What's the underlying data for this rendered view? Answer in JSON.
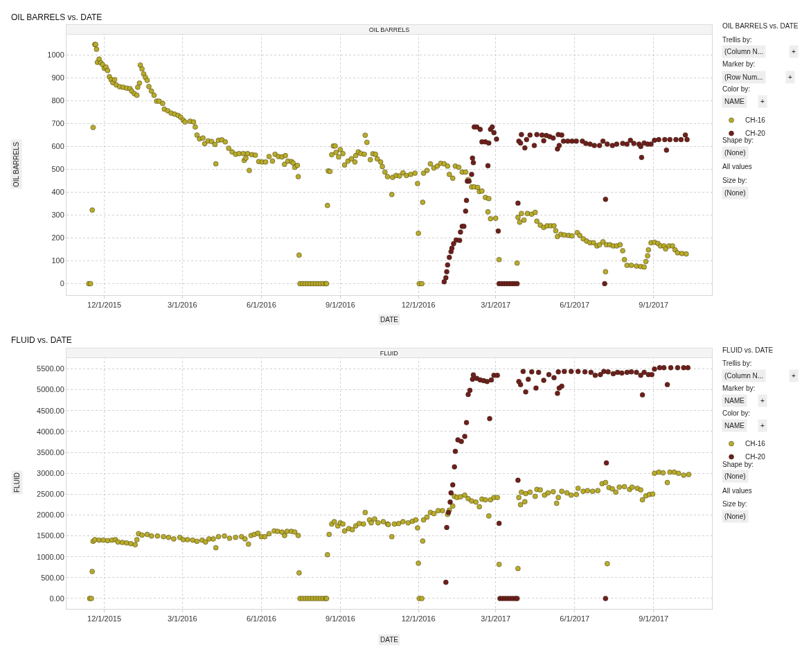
{
  "chart_data": [
    {
      "type": "scatter",
      "title": "OIL BARRELS vs. DATE",
      "subtitle": "OIL BARRELS",
      "xlabel": "DATE",
      "ylabel": "OIL BARRELS",
      "xlim": [
        "2015-10-18",
        "2017-11-08"
      ],
      "ylim": [
        -50,
        1095
      ],
      "xticks": [
        {
          "value": "2015-12-01",
          "label": "12/1/2015"
        },
        {
          "value": "2016-03-01",
          "label": "3/1/2016"
        },
        {
          "value": "2016-06-01",
          "label": "6/1/2016"
        },
        {
          "value": "2016-09-01",
          "label": "9/1/2016"
        },
        {
          "value": "2016-12-01",
          "label": "12/1/2016"
        },
        {
          "value": "2017-03-01",
          "label": "3/1/2017"
        },
        {
          "value": "2017-06-01",
          "label": "6/1/2017"
        },
        {
          "value": "2017-09-01",
          "label": "9/1/2017"
        }
      ],
      "yticks": [
        0,
        100,
        200,
        300,
        400,
        500,
        600,
        700,
        800,
        900,
        1000
      ],
      "grid": true,
      "legend": "right",
      "marker": "circle",
      "annotations": [
        "OIL BARRELS vs. DATE",
        "Trellis by:",
        "(Column N...",
        "+",
        "Marker by:",
        "(Row Num...",
        "+",
        "Color by:",
        "NAME",
        "+",
        "Shape by:",
        "(None)",
        "All values",
        "Size by:",
        "(None)"
      ],
      "series": [
        {
          "name": "CH-16",
          "color": "#b8ac2c",
          "x": [
            "2015-11-13",
            "2015-11-15",
            "2015-11-17",
            "2015-11-18",
            "2015-11-20",
            "2015-11-21",
            "2015-11-22",
            "2015-11-23",
            "2015-11-25",
            "2015-11-27",
            "2015-11-29",
            "2015-12-01",
            "2015-12-03",
            "2015-12-05",
            "2015-12-07",
            "2015-12-09",
            "2015-12-11",
            "2015-12-13",
            "2015-12-15",
            "2015-12-19",
            "2015-12-23",
            "2015-12-27",
            "2015-12-31",
            "2016-01-02",
            "2016-01-05",
            "2016-01-08",
            "2016-01-09",
            "2016-01-11",
            "2016-01-12",
            "2016-01-14",
            "2016-01-16",
            "2016-01-18",
            "2016-01-20",
            "2016-01-22",
            "2016-01-25",
            "2016-01-28",
            "2016-01-31",
            "2016-02-03",
            "2016-02-07",
            "2016-02-09",
            "2016-02-13",
            "2016-02-17",
            "2016-02-21",
            "2016-02-25",
            "2016-02-28",
            "2016-03-02",
            "2016-03-04",
            "2016-03-10",
            "2016-03-14",
            "2016-03-16",
            "2016-03-18",
            "2016-03-21",
            "2016-03-25",
            "2016-03-27",
            "2016-03-31",
            "2016-04-04",
            "2016-04-08",
            "2016-04-09",
            "2016-04-12",
            "2016-04-16",
            "2016-04-20",
            "2016-04-24",
            "2016-04-28",
            "2016-05-02",
            "2016-05-06",
            "2016-05-11",
            "2016-05-12",
            "2016-05-14",
            "2016-05-16",
            "2016-05-18",
            "2016-05-21",
            "2016-05-25",
            "2016-05-29",
            "2016-06-02",
            "2016-06-06",
            "2016-06-10",
            "2016-06-14",
            "2016-06-17",
            "2016-06-21",
            "2016-06-25",
            "2016-06-28",
            "2016-06-29",
            "2016-07-02",
            "2016-07-06",
            "2016-07-08",
            "2016-07-10",
            "2016-07-13",
            "2016-07-14",
            "2016-07-15",
            "2016-07-16",
            "2016-07-19",
            "2016-07-22",
            "2016-07-25",
            "2016-07-28",
            "2016-07-31",
            "2016-08-03",
            "2016-08-06",
            "2016-08-09",
            "2016-08-12",
            "2016-08-15",
            "2016-08-16",
            "2016-08-17",
            "2016-08-18",
            "2016-08-20",
            "2016-08-22",
            "2016-08-24",
            "2016-08-26",
            "2016-08-27",
            "2016-08-30",
            "2016-09-01",
            "2016-09-04",
            "2016-09-06",
            "2016-09-10",
            "2016-09-14",
            "2016-09-18",
            "2016-09-19",
            "2016-09-22",
            "2016-09-25",
            "2016-09-29",
            "2016-09-30",
            "2016-10-02",
            "2016-10-06",
            "2016-10-09",
            "2016-10-12",
            "2016-10-14",
            "2016-10-18",
            "2016-10-20",
            "2016-10-23",
            "2016-10-26",
            "2016-10-31",
            "2016-11-01",
            "2016-11-05",
            "2016-11-09",
            "2016-11-13",
            "2016-11-17",
            "2016-11-22",
            "2016-11-27",
            "2016-11-30",
            "2016-12-01",
            "2016-12-02",
            "2016-12-05",
            "2016-12-06",
            "2016-12-07",
            "2016-12-11",
            "2016-12-15",
            "2016-12-19",
            "2016-12-23",
            "2016-12-27",
            "2016-12-31",
            "2017-01-04",
            "2017-01-06",
            "2017-01-10",
            "2017-01-13",
            "2017-01-17",
            "2017-01-21",
            "2017-01-25",
            "2017-01-28",
            "2017-02-01",
            "2017-02-04",
            "2017-02-08",
            "2017-02-10",
            "2017-02-13",
            "2017-02-17",
            "2017-02-20",
            "2017-02-21",
            "2017-02-23",
            "2017-03-01",
            "2017-03-05",
            "2017-03-26",
            "2017-03-27",
            "2017-03-29",
            "2017-03-31",
            "2017-04-03",
            "2017-04-07",
            "2017-04-12",
            "2017-04-16",
            "2017-04-18",
            "2017-04-22",
            "2017-04-26",
            "2017-04-30",
            "2017-05-04",
            "2017-05-08",
            "2017-05-10",
            "2017-05-12",
            "2017-05-16",
            "2017-05-20",
            "2017-05-25",
            "2017-05-29",
            "2017-06-04",
            "2017-06-07",
            "2017-06-11",
            "2017-06-15",
            "2017-06-19",
            "2017-06-23",
            "2017-06-27",
            "2017-06-30",
            "2017-07-04",
            "2017-07-07",
            "2017-07-08",
            "2017-07-12",
            "2017-07-16",
            "2017-07-20",
            "2017-07-24",
            "2017-07-27",
            "2017-07-29",
            "2017-08-01",
            "2017-08-06",
            "2017-08-12",
            "2017-08-17",
            "2017-08-21",
            "2017-08-23",
            "2017-08-25",
            "2017-08-26",
            "2017-08-29",
            "2017-09-02",
            "2017-09-06",
            "2017-09-09",
            "2017-09-13",
            "2017-09-15",
            "2017-09-19",
            "2017-09-23",
            "2017-09-26",
            "2017-09-29",
            "2017-10-04",
            "2017-10-09"
          ],
          "values": [
            0,
            0,
            322,
            683,
            1046,
            1046,
            1025,
            968,
            982,
            966,
            958,
            942,
            947,
            932,
            905,
            892,
            879,
            892,
            869,
            861,
            859,
            855,
            853,
            842,
            831,
            824,
            859,
            877,
            956,
            939,
            917,
            902,
            889,
            862,
            842,
            824,
            798,
            798,
            788,
            763,
            756,
            746,
            741,
            736,
            728,
            715,
            707,
            710,
            707,
            685,
            650,
            633,
            637,
            612,
            624,
            622,
            609,
            524,
            627,
            629,
            620,
            592,
            576,
            566,
            569,
            569,
            539,
            549,
            569,
            495,
            564,
            562,
            534,
            532,
            532,
            556,
            536,
            566,
            556,
            554,
            522,
            560,
            536,
            534,
            528,
            509,
            517,
            468,
            125,
            0,
            0,
            0,
            0,
            0,
            0,
            0,
            0,
            0,
            0,
            0,
            0,
            342,
            493,
            491,
            564,
            602,
            602,
            574,
            554,
            586,
            569,
            519,
            536,
            546,
            532,
            560,
            576,
            569,
            566,
            649,
            618,
            542,
            568,
            566,
            546,
            532,
            512,
            488,
            468,
            390,
            465,
            473,
            471,
            485,
            473,
            478,
            483,
            438,
            220,
            0,
            0,
            356,
            483,
            495,
            524,
            506,
            514,
            526,
            524,
            514,
            478,
            461,
            514,
            509,
            488,
            488,
            455,
            423,
            423,
            421,
            403,
            405,
            377,
            314,
            372,
            284,
            286,
            105,
            90,
            290,
            269,
            307,
            278,
            307,
            304,
            312,
            273,
            256,
            246,
            253,
            253,
            253,
            231,
            206,
            216,
            213,
            211,
            209,
            223,
            211,
            196,
            186,
            179,
            179,
            165,
            170,
            183,
            52,
            170,
            170,
            165,
            165,
            170,
            144,
            105,
            80,
            80,
            77,
            75,
            73,
            97,
            122,
            148,
            179,
            181,
            176,
            165,
            165,
            152,
            165,
            165,
            148,
            135,
            132,
            130
          ]
        },
        {
          "name": "CH-20",
          "color": "#6e1f1f",
          "x": [
            "2016-12-31",
            "2017-01-02",
            "2017-01-03",
            "2017-01-04",
            "2017-01-06",
            "2017-01-08",
            "2017-01-09",
            "2017-01-11",
            "2017-01-14",
            "2017-01-18",
            "2017-01-19",
            "2017-01-21",
            "2017-01-23",
            "2017-01-25",
            "2017-01-26",
            "2017-01-27",
            "2017-01-29",
            "2017-02-01",
            "2017-02-02",
            "2017-02-03",
            "2017-02-04",
            "2017-02-07",
            "2017-02-11",
            "2017-02-13",
            "2017-02-17",
            "2017-02-20",
            "2017-02-21",
            "2017-02-23",
            "2017-02-25",
            "2017-02-27",
            "2017-03-02",
            "2017-03-04",
            "2017-03-05",
            "2017-03-08",
            "2017-03-11",
            "2017-03-14",
            "2017-03-17",
            "2017-03-20",
            "2017-03-23",
            "2017-03-26",
            "2017-03-27",
            "2017-03-28",
            "2017-03-30",
            "2017-03-31",
            "2017-04-04",
            "2017-04-06",
            "2017-04-10",
            "2017-04-15",
            "2017-04-18",
            "2017-04-24",
            "2017-04-26",
            "2017-04-29",
            "2017-05-03",
            "2017-05-07",
            "2017-05-12",
            "2017-05-13",
            "2017-05-14",
            "2017-05-17",
            "2017-05-19",
            "2017-05-24",
            "2017-05-29",
            "2017-06-03",
            "2017-06-10",
            "2017-06-14",
            "2017-06-19",
            "2017-06-24",
            "2017-06-30",
            "2017-07-04",
            "2017-07-06",
            "2017-07-07",
            "2017-07-09",
            "2017-07-15",
            "2017-07-20",
            "2017-07-27",
            "2017-08-01",
            "2017-08-05",
            "2017-08-09",
            "2017-08-15",
            "2017-08-17",
            "2017-08-18",
            "2017-08-21",
            "2017-08-25",
            "2017-08-29",
            "2017-09-02",
            "2017-09-07",
            "2017-09-14",
            "2017-09-16",
            "2017-09-20",
            "2017-09-27",
            "2017-10-03",
            "2017-10-08",
            "2017-10-10"
          ],
          "values": [
            8,
            26,
            52,
            82,
            115,
            140,
            155,
            175,
            191,
            189,
            226,
            251,
            251,
            317,
            364,
            448,
            448,
            478,
            549,
            529,
            685,
            685,
            675,
            620,
            620,
            516,
            615,
            675,
            685,
            660,
            632,
            230,
            0,
            0,
            0,
            0,
            0,
            0,
            0,
            0,
            352,
            623,
            615,
            652,
            594,
            630,
            650,
            604,
            652,
            650,
            625,
            648,
            643,
            637,
            589,
            652,
            604,
            650,
            623,
            623,
            623,
            623,
            623,
            613,
            610,
            604,
            604,
            623,
            0,
            369,
            610,
            604,
            610,
            613,
            610,
            627,
            613,
            610,
            600,
            552,
            615,
            610,
            610,
            627,
            630,
            630,
            584,
            630,
            630,
            630,
            650,
            630
          ]
        }
      ]
    },
    {
      "type": "scatter",
      "title": "FLUID vs. DATE",
      "subtitle": "FLUID",
      "xlabel": "DATE",
      "ylabel": "FLUID",
      "xlim": [
        "2015-10-18",
        "2017-11-08"
      ],
      "ylim": [
        -250,
        5790
      ],
      "xticks": [
        {
          "value": "2015-12-01",
          "label": "12/1/2015"
        },
        {
          "value": "2016-03-01",
          "label": "3/1/2016"
        },
        {
          "value": "2016-06-01",
          "label": "6/1/2016"
        },
        {
          "value": "2016-09-01",
          "label": "9/1/2016"
        },
        {
          "value": "2016-12-01",
          "label": "12/1/2016"
        },
        {
          "value": "2017-03-01",
          "label": "3/1/2017"
        },
        {
          "value": "2017-06-01",
          "label": "6/1/2017"
        },
        {
          "value": "2017-09-01",
          "label": "9/1/2017"
        }
      ],
      "yticks": [
        {
          "value": 0,
          "label": "0.00"
        },
        {
          "value": 500,
          "label": "500.00"
        },
        {
          "value": 1000,
          "label": "1000.00"
        },
        {
          "value": 1500,
          "label": "1500.00"
        },
        {
          "value": 2000,
          "label": "2000.00"
        },
        {
          "value": 2500,
          "label": "2500.00"
        },
        {
          "value": 3000,
          "label": "3000.00"
        },
        {
          "value": 3500,
          "label": "3500.00"
        },
        {
          "value": 4000,
          "label": "4000.00"
        },
        {
          "value": 4500,
          "label": "4500.00"
        },
        {
          "value": 5000,
          "label": "5000.00"
        },
        {
          "value": 5500,
          "label": "5500.00"
        }
      ],
      "grid": true,
      "legend": "right",
      "marker": "circle",
      "annotations": [
        "FLUID vs. DATE",
        "Trellis by:",
        "(Column N...",
        "+",
        "Marker by:",
        "NAME",
        "+",
        "Color by:",
        "NAME",
        "+",
        "Shape by:",
        "(None)",
        "All values",
        "Size by:",
        "(None)"
      ],
      "series": [
        {
          "name": "CH-16",
          "color": "#b8ac2c",
          "x": [
            "2015-11-14",
            "2015-11-16",
            "2015-11-17",
            "2015-11-18",
            "2015-11-20",
            "2015-11-25",
            "2015-11-30",
            "2015-12-05",
            "2015-12-10",
            "2015-12-14",
            "2015-12-17",
            "2015-12-22",
            "2015-12-27",
            "2016-01-01",
            "2016-01-06",
            "2016-01-08",
            "2016-01-10",
            "2016-01-14",
            "2016-01-20",
            "2016-01-25",
            "2016-02-01",
            "2016-02-08",
            "2016-02-14",
            "2016-02-20",
            "2016-02-27",
            "2016-03-02",
            "2016-03-07",
            "2016-03-13",
            "2016-03-18",
            "2016-03-24",
            "2016-03-28",
            "2016-04-01",
            "2016-04-06",
            "2016-04-09",
            "2016-04-12",
            "2016-04-19",
            "2016-04-25",
            "2016-05-02",
            "2016-05-09",
            "2016-05-13",
            "2016-05-17",
            "2016-05-20",
            "2016-05-24",
            "2016-05-28",
            "2016-06-01",
            "2016-06-05",
            "2016-06-10",
            "2016-06-16",
            "2016-06-20",
            "2016-06-25",
            "2016-06-28",
            "2016-07-01",
            "2016-07-06",
            "2016-07-10",
            "2016-07-14",
            "2016-07-15",
            "2016-07-16",
            "2016-07-19",
            "2016-07-22",
            "2016-07-25",
            "2016-07-28",
            "2016-07-31",
            "2016-08-03",
            "2016-08-06",
            "2016-08-09",
            "2016-08-12",
            "2016-08-15",
            "2016-08-16",
            "2016-08-17",
            "2016-08-19",
            "2016-08-22",
            "2016-08-25",
            "2016-08-29",
            "2016-09-01",
            "2016-09-04",
            "2016-09-06",
            "2016-09-11",
            "2016-09-15",
            "2016-09-19",
            "2016-09-23",
            "2016-09-28",
            "2016-09-30",
            "2016-10-05",
            "2016-10-07",
            "2016-10-11",
            "2016-10-15",
            "2016-10-21",
            "2016-10-26",
            "2016-10-27",
            "2016-10-31",
            "2016-11-03",
            "2016-11-08",
            "2016-11-13",
            "2016-11-19",
            "2016-11-24",
            "2016-11-28",
            "2016-11-30",
            "2016-12-01",
            "2016-12-02",
            "2016-12-05",
            "2016-12-06",
            "2016-12-07",
            "2016-12-11",
            "2016-12-15",
            "2016-12-19",
            "2016-12-24",
            "2016-12-29",
            "2017-01-04",
            "2017-01-06",
            "2017-01-10",
            "2017-01-12",
            "2017-01-15",
            "2017-01-19",
            "2017-01-24",
            "2017-01-28",
            "2017-02-01",
            "2017-02-06",
            "2017-02-10",
            "2017-02-13",
            "2017-02-17",
            "2017-02-21",
            "2017-02-23",
            "2017-02-27",
            "2017-03-03",
            "2017-03-05",
            "2017-03-27",
            "2017-03-28",
            "2017-03-30",
            "2017-03-31",
            "2017-04-04",
            "2017-04-05",
            "2017-04-10",
            "2017-04-16",
            "2017-04-18",
            "2017-04-22",
            "2017-04-27",
            "2017-05-01",
            "2017-05-07",
            "2017-05-11",
            "2017-05-13",
            "2017-05-17",
            "2017-05-23",
            "2017-05-28",
            "2017-06-03",
            "2017-06-05",
            "2017-06-11",
            "2017-06-16",
            "2017-06-22",
            "2017-06-28",
            "2017-07-03",
            "2017-07-07",
            "2017-07-09",
            "2017-07-11",
            "2017-07-15",
            "2017-07-19",
            "2017-07-23",
            "2017-07-29",
            "2017-08-04",
            "2017-08-07",
            "2017-08-13",
            "2017-08-17",
            "2017-08-19",
            "2017-08-23",
            "2017-08-27",
            "2017-08-31",
            "2017-09-02",
            "2017-09-07",
            "2017-09-12",
            "2017-09-17",
            "2017-09-20",
            "2017-09-25",
            "2017-09-30",
            "2017-10-06",
            "2017-10-12"
          ],
          "values": [
            0,
            0,
            646,
            1369,
            1408,
            1397,
            1397,
            1386,
            1397,
            1408,
            1353,
            1342,
            1331,
            1314,
            1287,
            1408,
            1552,
            1518,
            1535,
            1496,
            1496,
            1480,
            1463,
            1425,
            1463,
            1408,
            1408,
            1397,
            1369,
            1397,
            1353,
            1425,
            1425,
            1215,
            1480,
            1496,
            1441,
            1463,
            1480,
            1425,
            1303,
            1507,
            1535,
            1563,
            1480,
            1480,
            1552,
            1618,
            1607,
            1590,
            1507,
            1607,
            1607,
            1590,
            1507,
            613,
            0,
            0,
            0,
            0,
            0,
            0,
            0,
            0,
            0,
            0,
            0,
            0,
            1049,
            1535,
            1784,
            1839,
            1739,
            1811,
            1784,
            1618,
            1673,
            1646,
            1739,
            1795,
            1784,
            2060,
            1883,
            1811,
            1905,
            1811,
            1839,
            1784,
            1772,
            1480,
            1784,
            1795,
            1839,
            1811,
            1850,
            1883,
            1690,
            845,
            0,
            0,
            1375,
            1883,
            1949,
            2060,
            2032,
            2104,
            2104,
            2015,
            2115,
            2214,
            2446,
            2419,
            2435,
            2474,
            2391,
            2336,
            2308,
            2198,
            2380,
            2363,
            1977,
            2363,
            2419,
            2419,
            817,
            718,
            2419,
            2247,
            2546,
            2319,
            2512,
            2546,
            2446,
            2612,
            2601,
            2474,
            2529,
            2557,
            2281,
            2419,
            2568,
            2529,
            2474,
            2490,
            2639,
            2568,
            2584,
            2568,
            2584,
            2750,
            2777,
            834,
            2656,
            2623,
            2546,
            2667,
            2678,
            2612,
            2667,
            2639,
            2601,
            2363,
            2457,
            2490,
            2501,
            2998,
            3026,
            3009,
            2777,
            3026,
            3026,
            2998,
            2954,
            2971
          ]
        },
        {
          "name": "CH-20",
          "color": "#6e1f1f",
          "x": [
            "2017-01-02",
            "2017-01-03",
            "2017-01-05",
            "2017-01-07",
            "2017-01-08",
            "2017-01-10",
            "2017-01-12",
            "2017-01-13",
            "2017-01-16",
            "2017-01-20",
            "2017-01-24",
            "2017-01-26",
            "2017-01-28",
            "2017-01-30",
            "2017-02-02",
            "2017-02-03",
            "2017-02-07",
            "2017-02-11",
            "2017-02-15",
            "2017-02-19",
            "2017-02-22",
            "2017-02-24",
            "2017-02-27",
            "2017-03-03",
            "2017-03-05",
            "2017-03-06",
            "2017-03-09",
            "2017-03-12",
            "2017-03-15",
            "2017-03-18",
            "2017-03-21",
            "2017-03-24",
            "2017-03-26",
            "2017-03-27",
            "2017-03-28",
            "2017-03-30",
            "2017-04-02",
            "2017-04-05",
            "2017-04-08",
            "2017-04-12",
            "2017-04-17",
            "2017-04-20",
            "2017-04-26",
            "2017-05-02",
            "2017-05-08",
            "2017-05-12",
            "2017-05-13",
            "2017-05-14",
            "2017-05-17",
            "2017-05-20",
            "2017-05-28",
            "2017-06-05",
            "2017-06-13",
            "2017-06-20",
            "2017-06-25",
            "2017-07-01",
            "2017-07-05",
            "2017-07-07",
            "2017-07-08",
            "2017-07-10",
            "2017-07-16",
            "2017-07-21",
            "2017-07-26",
            "2017-08-01",
            "2017-08-06",
            "2017-08-12",
            "2017-08-17",
            "2017-08-19",
            "2017-08-21",
            "2017-08-26",
            "2017-08-30",
            "2017-09-02",
            "2017-09-08",
            "2017-09-13",
            "2017-09-17",
            "2017-09-21",
            "2017-09-29",
            "2017-10-06",
            "2017-10-11"
          ],
          "values": [
            387,
            1701,
            2060,
            2308,
            2529,
            2722,
            3153,
            3523,
            3799,
            3760,
            3882,
            4213,
            4887,
            4986,
            5251,
            5356,
            5273,
            5235,
            5218,
            5196,
            4307,
            5235,
            5345,
            5345,
            1800,
            0,
            0,
            0,
            0,
            0,
            0,
            0,
            0,
            2833,
            5196,
            5124,
            5439,
            4948,
            5251,
            5428,
            5041,
            5417,
            5224,
            5362,
            5290,
            4914,
            5428,
            5041,
            5086,
            5439,
            5439,
            5439,
            5428,
            5417,
            5345,
            5362,
            5439,
            0,
            3247,
            5428,
            5384,
            5417,
            5401,
            5417,
            5428,
            5417,
            5345,
            4876,
            5417,
            5362,
            5362,
            5494,
            5527,
            5527,
            5124,
            5527,
            5527,
            5527,
            5527
          ]
        }
      ]
    }
  ]
}
